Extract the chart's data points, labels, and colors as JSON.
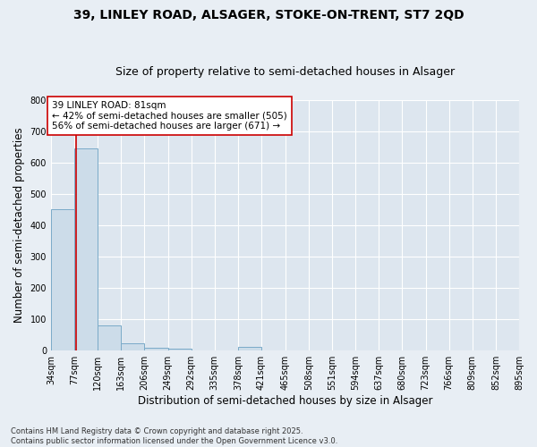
{
  "title_line1": "39, LINLEY ROAD, ALSAGER, STOKE-ON-TRENT, ST7 2QD",
  "title_line2": "Size of property relative to semi-detached houses in Alsager",
  "xlabel": "Distribution of semi-detached houses by size in Alsager",
  "ylabel": "Number of semi-detached properties",
  "footnote": "Contains HM Land Registry data © Crown copyright and database right 2025.\nContains public sector information licensed under the Open Government Licence v3.0.",
  "bin_labels": [
    "34sqm",
    "77sqm",
    "120sqm",
    "163sqm",
    "206sqm",
    "249sqm",
    "292sqm",
    "335sqm",
    "378sqm",
    "421sqm",
    "465sqm",
    "508sqm",
    "551sqm",
    "594sqm",
    "637sqm",
    "680sqm",
    "723sqm",
    "766sqm",
    "809sqm",
    "852sqm",
    "895sqm"
  ],
  "bin_edges": [
    34,
    77,
    120,
    163,
    206,
    249,
    292,
    335,
    378,
    421,
    465,
    508,
    551,
    594,
    637,
    680,
    723,
    766,
    809,
    852,
    895
  ],
  "bar_heights": [
    450,
    645,
    80,
    22,
    10,
    5,
    0,
    0,
    12,
    0,
    0,
    0,
    0,
    0,
    0,
    0,
    0,
    0,
    0,
    0
  ],
  "bar_color": "#ccdce9",
  "bar_edge_color": "#7aaac8",
  "vline_x": 81,
  "vline_color": "#cc0000",
  "annotation_text": "39 LINLEY ROAD: 81sqm\n← 42% of semi-detached houses are smaller (505)\n56% of semi-detached houses are larger (671) →",
  "annotation_box_color": "#ffffff",
  "annotation_box_edge_color": "#cc0000",
  "annotation_fontsize": 7.5,
  "ylim": [
    0,
    800
  ],
  "yticks": [
    0,
    100,
    200,
    300,
    400,
    500,
    600,
    700,
    800
  ],
  "background_color": "#e8eef4",
  "plot_bg_color": "#dde6ef",
  "title_fontsize": 10,
  "subtitle_fontsize": 9,
  "axis_label_fontsize": 8.5,
  "tick_fontsize": 7,
  "grid_color": "#ffffff",
  "grid_linewidth": 0.8
}
